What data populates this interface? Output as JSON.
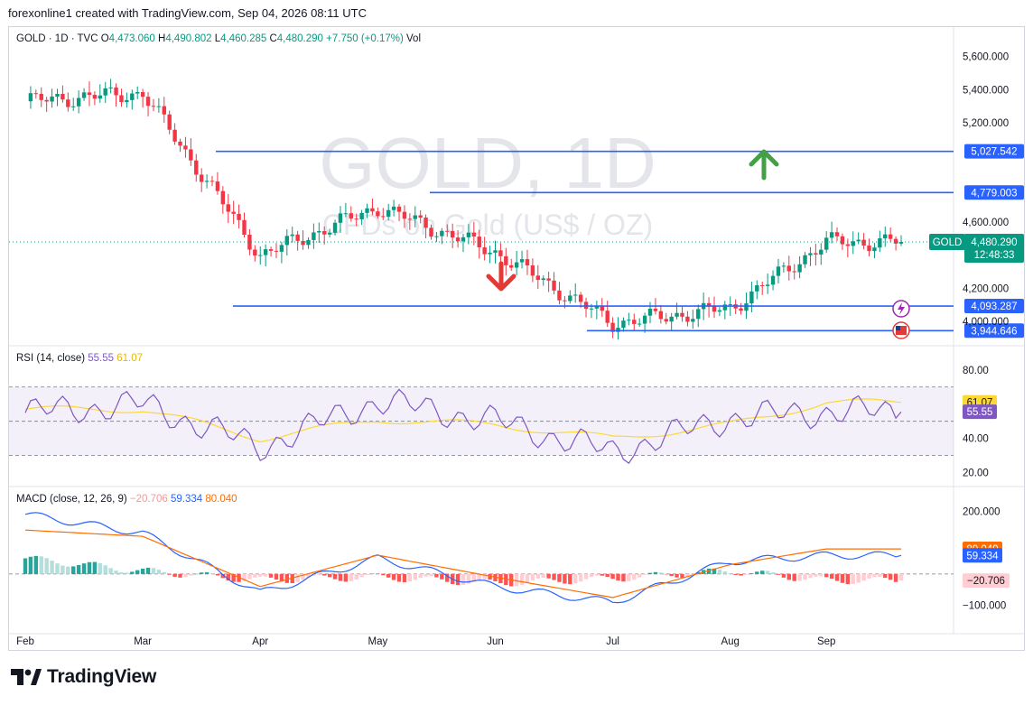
{
  "header": {
    "text": "forexonline1 created with TradingView.com, Sep 04, 2026 08:11 UTC"
  },
  "legend": {
    "symbol": "GOLD · 1D · TVC",
    "open_label": "O",
    "open": "4,473.060",
    "high_label": "H",
    "high": "4,490.802",
    "low_label": "L",
    "low": "4,460.285",
    "close_label": "C",
    "close": "4,480.290",
    "change": "+7.750 (+0.17%)",
    "vol_label": "Vol",
    "colors": {
      "up": "#089981",
      "down": "#f23645",
      "text": "#131722"
    }
  },
  "watermark": {
    "line1": "GOLD, 1D",
    "line2": "CFDs on Gold (US$ / OZ)"
  },
  "price_panel": {
    "ticks": [
      "5,600.000",
      "5,400.000",
      "5,200.000",
      "4,600.000",
      "4,200.000",
      "4,000.000"
    ],
    "tick_values": [
      5600,
      5400,
      5200,
      4600,
      4200,
      4000
    ],
    "last_price_label": "GOLD",
    "last_price": "4,480.290",
    "countdown": "12:48:33",
    "levels": [
      {
        "label": "5,027.542",
        "value": 5027.542
      },
      {
        "label": "4,779.003",
        "value": 4779.003
      },
      {
        "label": "4,093.287",
        "value": 4093.287
      },
      {
        "label": "3,944.646",
        "value": 3944.646
      }
    ],
    "arrows": [
      {
        "direction": "up",
        "color": "#43a047"
      },
      {
        "direction": "down",
        "color": "#e53935"
      }
    ]
  },
  "rsi_panel": {
    "title": "RSI (14, close)",
    "rsi_value": "55.55",
    "ma_value": "61.07",
    "ticks": [
      "80.00",
      "40.00",
      "20.00"
    ],
    "tick_values": [
      80,
      40,
      20
    ],
    "colors": {
      "rsi": "#7e57c2",
      "ma": "#fdd835"
    }
  },
  "macd_panel": {
    "title": "MACD (close, 12, 26, 9)",
    "hist_value": "−20.706",
    "macd_value": "59.334",
    "signal_value": "80.040",
    "ticks": [
      "200.000",
      "−100.000"
    ],
    "tick_values": [
      200,
      -100
    ],
    "colors": {
      "macd": "#2962ff",
      "signal": "#ff6d00"
    }
  },
  "time_axis": {
    "labels": [
      "Feb",
      "Mar",
      "Apr",
      "May",
      "Jun",
      "Jul",
      "Aug",
      "Sep"
    ]
  },
  "footer": {
    "brand": "TradingView"
  },
  "chart_data": {
    "type": "line",
    "title": "GOLD, 1D",
    "subtitle": "CFDs on Gold (US$ / OZ)",
    "xlabel": "",
    "ylabel": "",
    "x": [
      "Feb",
      "Mar",
      "Apr",
      "May",
      "Jun",
      "Jul",
      "Aug",
      "Sep"
    ],
    "price_ylim": [
      3870,
      5680
    ],
    "series": [
      {
        "name": "GOLD",
        "values": [
          5330,
          5380,
          4400,
          4690,
          4420,
          3990,
          4080,
          4480
        ]
      },
      {
        "name": "RSI",
        "values": [
          55,
          60,
          35,
          62,
          50,
          32,
          52,
          55.55
        ]
      },
      {
        "name": "MA",
        "values": [
          57,
          57,
          40,
          51,
          48,
          40,
          48,
          61.07
        ]
      },
      {
        "name": "MACD",
        "values": [
          190,
          130,
          -60,
          50,
          -40,
          -90,
          40,
          59.334
        ]
      },
      {
        "name": "Signal",
        "values": [
          140,
          120,
          -40,
          60,
          -10,
          -75,
          30,
          80.04
        ]
      }
    ],
    "horizontal_levels": [
      5027.542,
      4779.003,
      4093.287,
      3944.646
    ]
  }
}
